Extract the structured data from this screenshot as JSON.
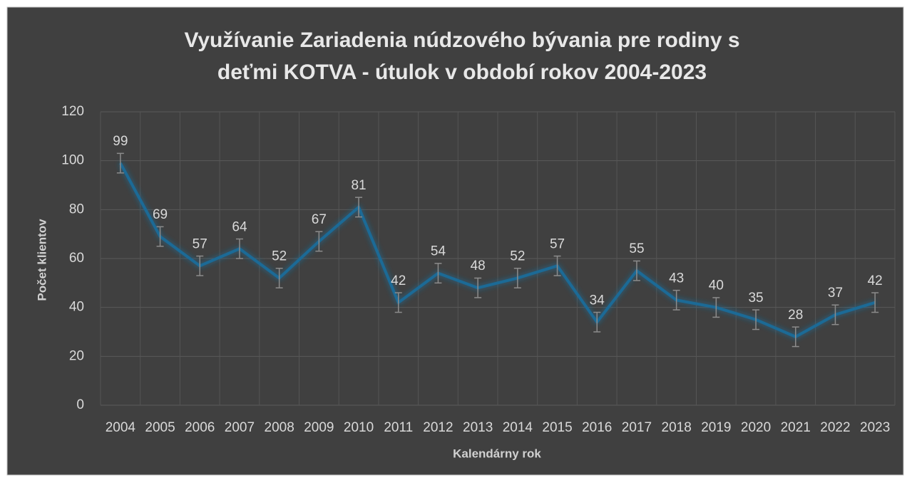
{
  "chart_data": {
    "type": "line",
    "title": "Využívanie Zariadenia núdzového bývania pre rodiny s deťmi KOTVA - útulok v období rokov 2004-2023",
    "xlabel": "Kalendárny rok",
    "ylabel": "Počet klientov",
    "categories": [
      "2004",
      "2005",
      "2006",
      "2007",
      "2008",
      "2009",
      "2010",
      "2011",
      "2012",
      "2013",
      "2014",
      "2015",
      "2016",
      "2017",
      "2018",
      "2019",
      "2020",
      "2021",
      "2022",
      "2023"
    ],
    "series": [
      {
        "name": "Počet klientov",
        "color": "#1a6b96",
        "values": [
          99,
          69,
          57,
          64,
          52,
          67,
          81,
          42,
          54,
          48,
          52,
          57,
          34,
          55,
          43,
          40,
          35,
          28,
          37,
          42
        ],
        "errors": [
          4,
          4,
          4,
          4,
          4,
          4,
          4,
          4,
          4,
          4,
          4,
          4,
          4,
          4,
          4,
          4,
          4,
          4,
          4,
          4
        ]
      }
    ],
    "ylim": [
      0,
      120
    ],
    "yticks": [
      0,
      20,
      40,
      60,
      80,
      100,
      120
    ],
    "grid": true
  }
}
